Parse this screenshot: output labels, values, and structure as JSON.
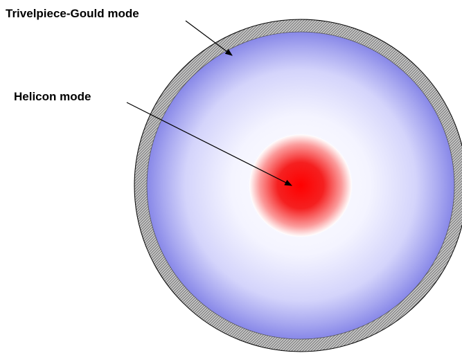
{
  "labels": {
    "trivelpiece_gould": "Trivelpiece-Gould mode",
    "helicon": "Helicon mode"
  }
}
